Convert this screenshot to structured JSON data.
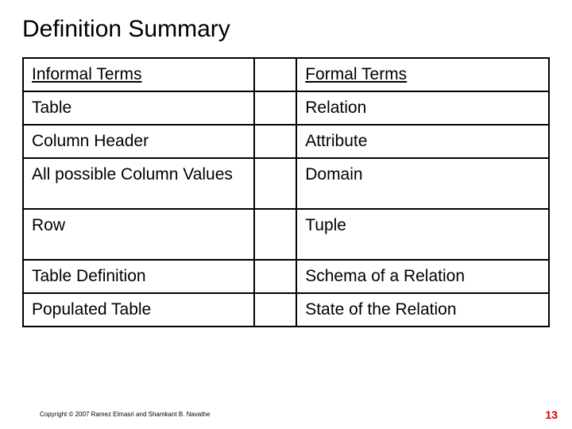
{
  "title": "Definition Summary",
  "table": {
    "border_color": "#000000",
    "border_width": 2,
    "font_size": 21,
    "columns": [
      "Informal Terms",
      "",
      "Formal Terms"
    ],
    "column_widths_pct": [
      44,
      8,
      48
    ],
    "rows": [
      {
        "informal": "Table",
        "formal": "Relation",
        "tall": false
      },
      {
        "informal": "Column Header",
        "formal": "Attribute",
        "tall": false
      },
      {
        "informal": "All possible Column Values",
        "formal": "Domain",
        "tall": true
      },
      {
        "informal": "Row",
        "formal": "Tuple",
        "tall": true
      },
      {
        "informal": "Table Definition",
        "formal": "Schema of a Relation",
        "tall": false
      },
      {
        "informal": "Populated Table",
        "formal": "State of the Relation",
        "tall": false
      }
    ]
  },
  "copyright": "Copyright © 2007 Ramez Elmasri and Shamkant B. Navathe",
  "page_number": "13",
  "colors": {
    "background": "#ffffff",
    "text": "#000000",
    "page_number": "#cc0000"
  },
  "title_fontsize": 30
}
